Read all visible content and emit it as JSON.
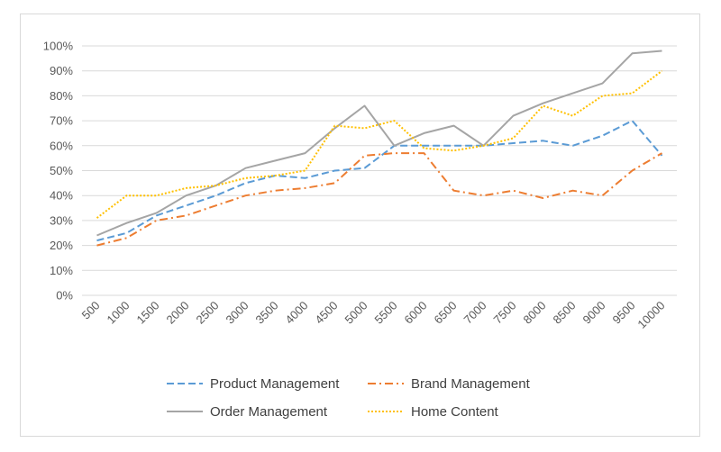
{
  "chart_data": {
    "type": "line",
    "title": "",
    "xlabel": "",
    "ylabel": "",
    "x": [
      "500",
      "1000",
      "1500",
      "2000",
      "2500",
      "3000",
      "3500",
      "4000",
      "4500",
      "5000",
      "5500",
      "6000",
      "6500",
      "7000",
      "7500",
      "8000",
      "8500",
      "9000",
      "9500",
      "10000"
    ],
    "y_ticks": [
      "0%",
      "10%",
      "20%",
      "30%",
      "40%",
      "50%",
      "60%",
      "70%",
      "80%",
      "90%",
      "100%"
    ],
    "ylim": [
      0,
      100
    ],
    "grid": true,
    "legend_position": "bottom",
    "series": [
      {
        "name": "Product Management",
        "color": "#5b9bd5",
        "style": "dashed",
        "values": [
          22,
          25,
          32,
          36,
          40,
          45,
          48,
          47,
          50,
          51,
          60,
          60,
          60,
          60,
          61,
          62,
          60,
          64,
          70,
          56
        ]
      },
      {
        "name": "Brand Management",
        "color": "#ed7d31",
        "style": "dash-dot",
        "values": [
          20,
          23,
          30,
          32,
          36,
          40,
          42,
          43,
          45,
          56,
          57,
          57,
          42,
          40,
          42,
          39,
          42,
          40,
          50,
          57
        ]
      },
      {
        "name": "Order Management",
        "color": "#a5a5a5",
        "style": "solid",
        "values": [
          24,
          29,
          33,
          40,
          44,
          51,
          54,
          57,
          67,
          76,
          60,
          65,
          68,
          60,
          72,
          77,
          81,
          85,
          97,
          98
        ]
      },
      {
        "name": "Home Content",
        "color": "#ffc000",
        "style": "dotted",
        "values": [
          31,
          40,
          40,
          43,
          44,
          47,
          48,
          50,
          68,
          67,
          70,
          59,
          58,
          60,
          63,
          76,
          72,
          80,
          81,
          90
        ]
      }
    ]
  }
}
